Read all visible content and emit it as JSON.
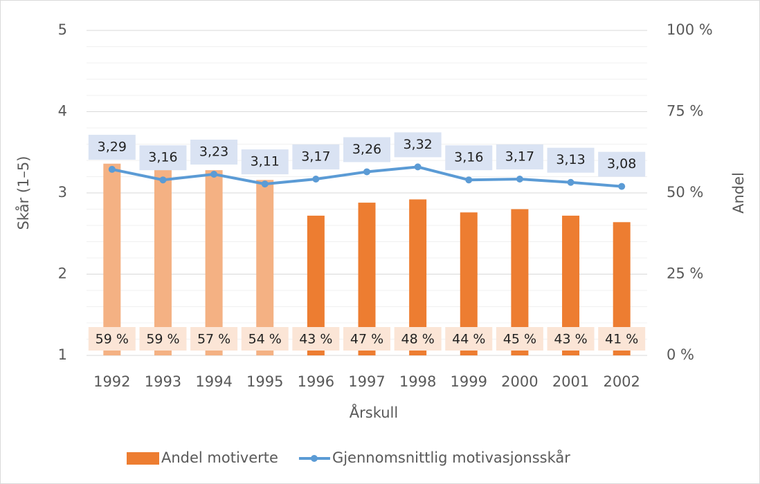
{
  "chart_data": {
    "type": "combo",
    "categories": [
      "1992",
      "1993",
      "1994",
      "1995",
      "1996",
      "1997",
      "1998",
      "1999",
      "2000",
      "2001",
      "2002"
    ],
    "series": [
      {
        "name": "Andel motiverte",
        "type": "bar",
        "axis": "y2",
        "color": "#ed7d31",
        "colors": [
          "#f4b183",
          "#f4b183",
          "#f4b183",
          "#f4b183",
          "#ed7d31",
          "#ed7d31",
          "#ed7d31",
          "#ed7d31",
          "#ed7d31",
          "#ed7d31",
          "#ed7d31"
        ],
        "values": [
          59,
          59,
          57,
          54,
          43,
          47,
          48,
          44,
          45,
          43,
          41
        ],
        "value_labels": [
          "59 %",
          "59 %",
          "57 %",
          "54 %",
          "43 %",
          "47 %",
          "48 %",
          "44 %",
          "45 %",
          "43 %",
          "41 %"
        ]
      },
      {
        "name": "Gjennomsnittlig motivasjonsskår",
        "type": "line",
        "axis": "y",
        "color": "#5b9bd5",
        "values": [
          3.29,
          3.16,
          3.23,
          3.11,
          3.17,
          3.26,
          3.32,
          3.16,
          3.17,
          3.13,
          3.08
        ],
        "value_labels": [
          "3,29",
          "3,16",
          "3,23",
          "3,11",
          "3,17",
          "3,26",
          "3,32",
          "3,16",
          "3,17",
          "3,13",
          "3,08"
        ]
      }
    ],
    "x_label": "Årskull",
    "y_label": "Skår (1–5)",
    "y2_label": "Andel",
    "ylim": [
      1,
      5
    ],
    "yticks": [
      1,
      2,
      3,
      4,
      5
    ],
    "yminorticks": [
      1.2,
      1.4,
      1.6,
      1.8,
      2.2,
      2.4,
      2.6,
      2.8,
      3.2,
      3.4,
      3.6,
      3.8,
      4.2,
      4.4,
      4.6,
      4.8
    ],
    "y2lim": [
      0,
      100
    ],
    "y2ticks": [
      {
        "value": 0,
        "label": "0 %"
      },
      {
        "value": 25,
        "label": "25 %"
      },
      {
        "value": 50,
        "label": "50 %"
      },
      {
        "value": 75,
        "label": "75 %"
      },
      {
        "value": 100,
        "label": "100 %"
      }
    ],
    "grid": true,
    "legend": "bottom"
  }
}
